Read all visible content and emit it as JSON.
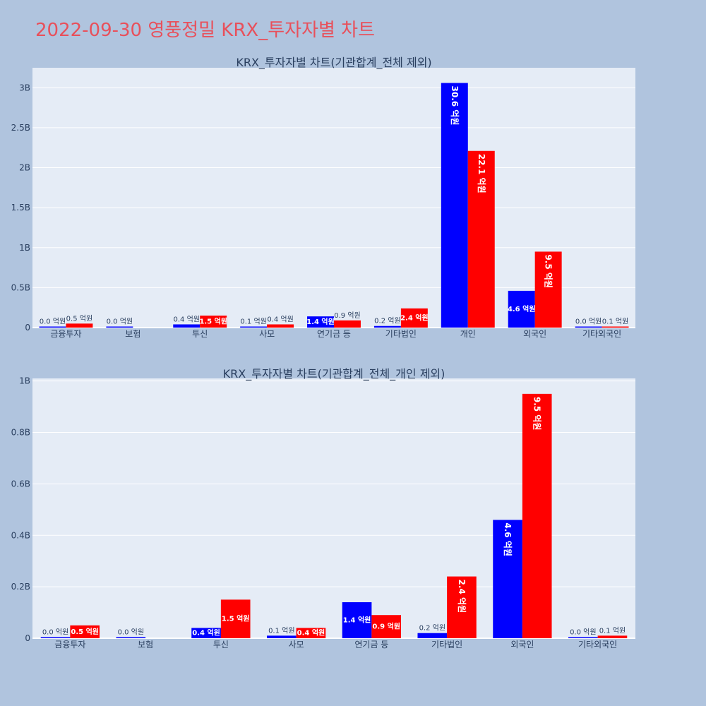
{
  "title": "2022-09-30 영풍정밀 KRX_투자자별 차트",
  "colors": {
    "background": "#b0c4de",
    "plot_bg": "#e5ecf6",
    "series_a": "#0000ff",
    "series_b": "#ff0000",
    "title": "#e8505b",
    "text": "#2a3f5f"
  },
  "chart_data": [
    {
      "type": "bar",
      "title": "KRX_투자자별 차트(기관합계_전체 제외)",
      "categories": [
        "금융투자",
        "보험",
        "투신",
        "사모",
        "연기금 등",
        "기타법인",
        "개인",
        "외국인",
        "기타외국인"
      ],
      "series": [
        {
          "values": [
            0.0,
            0.0,
            0.4,
            0.1,
            1.4,
            0.2,
            30.6,
            4.6,
            0.0
          ],
          "labels": [
            "0.0 억원",
            "0.0 억원",
            "0.4 억원",
            "0.1 억원",
            "1.4 억원",
            "0.2 억원",
            "30.6 억원",
            "4.6 억원",
            "0.0 억원"
          ]
        },
        {
          "values": [
            0.5,
            null,
            1.5,
            0.4,
            0.9,
            2.4,
            22.1,
            9.5,
            0.1
          ],
          "labels": [
            "0.5 억원",
            "",
            "1.5 억원",
            "0.4 억원",
            "0.9 억원",
            "2.4 억원",
            "22.1 억원",
            "9.5 억원",
            "0.1 억원"
          ]
        }
      ],
      "yticks": [
        0,
        5,
        10,
        15,
        20,
        25,
        30
      ],
      "ytick_labels": [
        "0",
        "0.5B",
        "1B",
        "1.5B",
        "2B",
        "2.5B",
        "3B"
      ],
      "ylim": [
        0,
        32.5
      ],
      "grid": true,
      "legend": "none"
    },
    {
      "type": "bar",
      "title": "KRX_투자자별 차트(기관합계_전체_개인 제외)",
      "categories": [
        "금융투자",
        "보험",
        "투신",
        "사모",
        "연기금 등",
        "기타법인",
        "외국인",
        "기타외국인"
      ],
      "series": [
        {
          "values": [
            0.0,
            0.0,
            0.4,
            0.1,
            1.4,
            0.2,
            4.6,
            0.0
          ],
          "labels": [
            "0.0 억원",
            "0.0 억원",
            "0.4 억원",
            "0.1 억원",
            "1.4 억원",
            "0.2 억원",
            "4.6 억원",
            "0.0 억원"
          ]
        },
        {
          "values": [
            0.5,
            null,
            1.5,
            0.4,
            0.9,
            2.4,
            9.5,
            0.1
          ],
          "labels": [
            "0.5 억원",
            "",
            "1.5 억원",
            "0.4 억원",
            "0.9 억원",
            "2.4 억원",
            "9.5 억원",
            "0.1 억원"
          ]
        }
      ],
      "yticks": [
        0,
        2,
        4,
        6,
        8,
        10
      ],
      "ytick_labels": [
        "0",
        "0.2B",
        "0.4B",
        "0.6B",
        "0.8B",
        "1B"
      ],
      "ylim": [
        0,
        10.1
      ],
      "grid": true,
      "legend": "none"
    }
  ]
}
